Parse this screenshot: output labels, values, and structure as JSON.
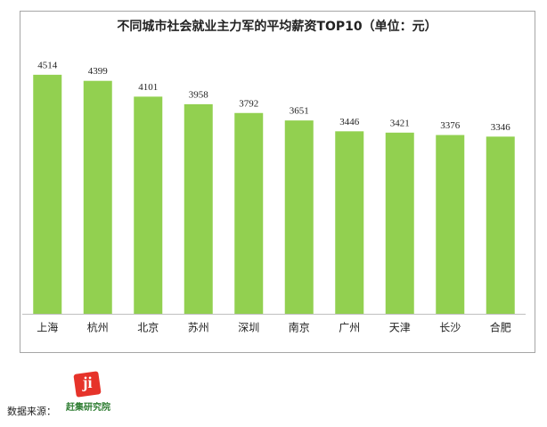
{
  "chart_data": {
    "type": "bar",
    "title": "不同城市社会就业主力军的平均薪资TOP10（单位：元）",
    "categories": [
      "上海",
      "杭州",
      "北京",
      "苏州",
      "深圳",
      "南京",
      "广州",
      "天津",
      "长沙",
      "合肥"
    ],
    "values": [
      4514,
      4399,
      4101,
      3958,
      3792,
      3651,
      3446,
      3421,
      3376,
      3346
    ],
    "color": "#92d050",
    "ylim": [
      0,
      5000
    ]
  },
  "footer": {
    "source_label": "数据来源：",
    "source_name": "赶集研究院"
  }
}
